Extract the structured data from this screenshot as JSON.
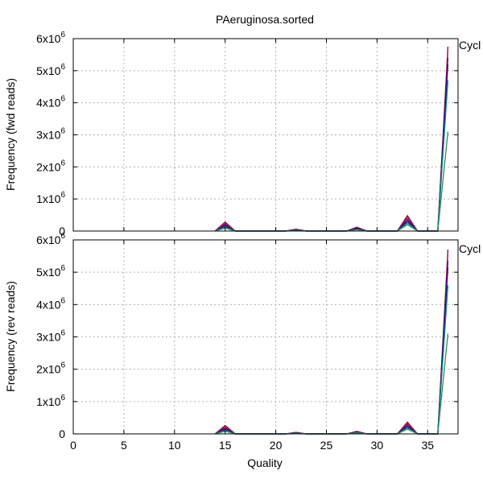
{
  "title": "PAeruginosa.sorted",
  "legend_fragment": "Cycl",
  "xlabel": "Quality",
  "x_ticks": [
    "0",
    "5",
    "10",
    "15",
    "20",
    "25",
    "30",
    "35"
  ],
  "y_ticks": [
    {
      "base": "0",
      "exp": ""
    },
    {
      "base": "1x10",
      "exp": "6"
    },
    {
      "base": "2x10",
      "exp": "6"
    },
    {
      "base": "3x10",
      "exp": "6"
    },
    {
      "base": "4x10",
      "exp": "6"
    },
    {
      "base": "5x10",
      "exp": "6"
    },
    {
      "base": "6x10",
      "exp": "6"
    }
  ],
  "series_colors": [
    "#8b0000",
    "#c71585",
    "#4b0082",
    "#191970",
    "#008b8b",
    "#2e8b57",
    "#556b2f",
    "#ff4500",
    "#000000",
    "#a0522d"
  ],
  "chart_data": [
    {
      "type": "line",
      "panel": "top",
      "ylabel": "Frequency (fwd reads)",
      "xlim": [
        0,
        38
      ],
      "ylim": [
        0,
        6000000
      ],
      "grid": true,
      "x": [
        14,
        15,
        16,
        21,
        22,
        23,
        27,
        28,
        29,
        32,
        33,
        34,
        36,
        37
      ],
      "series": [
        {
          "values": [
            0,
            280000,
            0,
            0,
            60000,
            0,
            0,
            120000,
            0,
            0,
            480000,
            0,
            0,
            5750000
          ]
        },
        {
          "values": [
            0,
            240000,
            0,
            0,
            50000,
            0,
            0,
            100000,
            0,
            0,
            420000,
            0,
            0,
            5600000
          ]
        },
        {
          "values": [
            0,
            200000,
            0,
            0,
            40000,
            0,
            0,
            90000,
            0,
            0,
            360000,
            0,
            0,
            5400000
          ]
        },
        {
          "values": [
            0,
            160000,
            0,
            0,
            30000,
            0,
            0,
            70000,
            0,
            0,
            300000,
            0,
            0,
            5200000
          ]
        },
        {
          "values": [
            0,
            120000,
            0,
            0,
            20000,
            0,
            0,
            50000,
            0,
            0,
            250000,
            0,
            0,
            4700000
          ]
        },
        {
          "values": [
            0,
            90000,
            0,
            0,
            15000,
            0,
            0,
            40000,
            0,
            0,
            200000,
            0,
            0,
            3100000
          ]
        }
      ]
    },
    {
      "type": "line",
      "panel": "bottom",
      "ylabel": "Frequency (rev reads)",
      "xlim": [
        0,
        38
      ],
      "ylim": [
        0,
        6000000
      ],
      "grid": true,
      "x": [
        14,
        15,
        16,
        21,
        22,
        23,
        27,
        28,
        29,
        32,
        33,
        34,
        36,
        37
      ],
      "series": [
        {
          "values": [
            0,
            260000,
            0,
            0,
            50000,
            0,
            0,
            80000,
            0,
            0,
            360000,
            0,
            0,
            5700000
          ]
        },
        {
          "values": [
            0,
            220000,
            0,
            0,
            45000,
            0,
            0,
            70000,
            0,
            0,
            320000,
            0,
            0,
            5550000
          ]
        },
        {
          "values": [
            0,
            180000,
            0,
            0,
            38000,
            0,
            0,
            60000,
            0,
            0,
            280000,
            0,
            0,
            5350000
          ]
        },
        {
          "values": [
            0,
            140000,
            0,
            0,
            30000,
            0,
            0,
            50000,
            0,
            0,
            230000,
            0,
            0,
            5150000
          ]
        },
        {
          "values": [
            0,
            110000,
            0,
            0,
            22000,
            0,
            0,
            40000,
            0,
            0,
            190000,
            0,
            0,
            4600000
          ]
        },
        {
          "values": [
            0,
            80000,
            0,
            0,
            15000,
            0,
            0,
            30000,
            0,
            0,
            150000,
            0,
            0,
            3100000
          ]
        }
      ]
    }
  ]
}
